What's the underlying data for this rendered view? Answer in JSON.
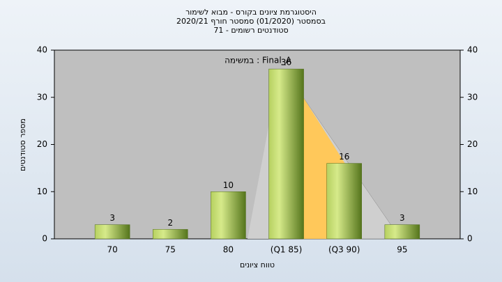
{
  "chart_data": {
    "type": "bar",
    "title": [
      "היסטוגרמת ציונים בקורס - מבוא לשימור",
      "בסמסטר  (01/2020)  סמסטר חורף 2020/21",
      "סטודנטים רשומים - 71"
    ],
    "annotation": "במשימה : Final_A",
    "x_label": "טווח ציונים",
    "y_label": "מספר סטודנטים",
    "categories": [
      "70",
      "75",
      "80",
      "(Q1 85)",
      "(Q3 90)",
      "95"
    ],
    "values": [
      3,
      2,
      10,
      36,
      16,
      3
    ],
    "color": "#8fb03a",
    "ylim": [
      0,
      40
    ],
    "yticks": [
      0,
      10,
      20,
      30,
      40
    ],
    "y2lim": [
      0,
      40
    ],
    "y2ticks": [
      0,
      10,
      20,
      30,
      40
    ],
    "grid": false
  }
}
